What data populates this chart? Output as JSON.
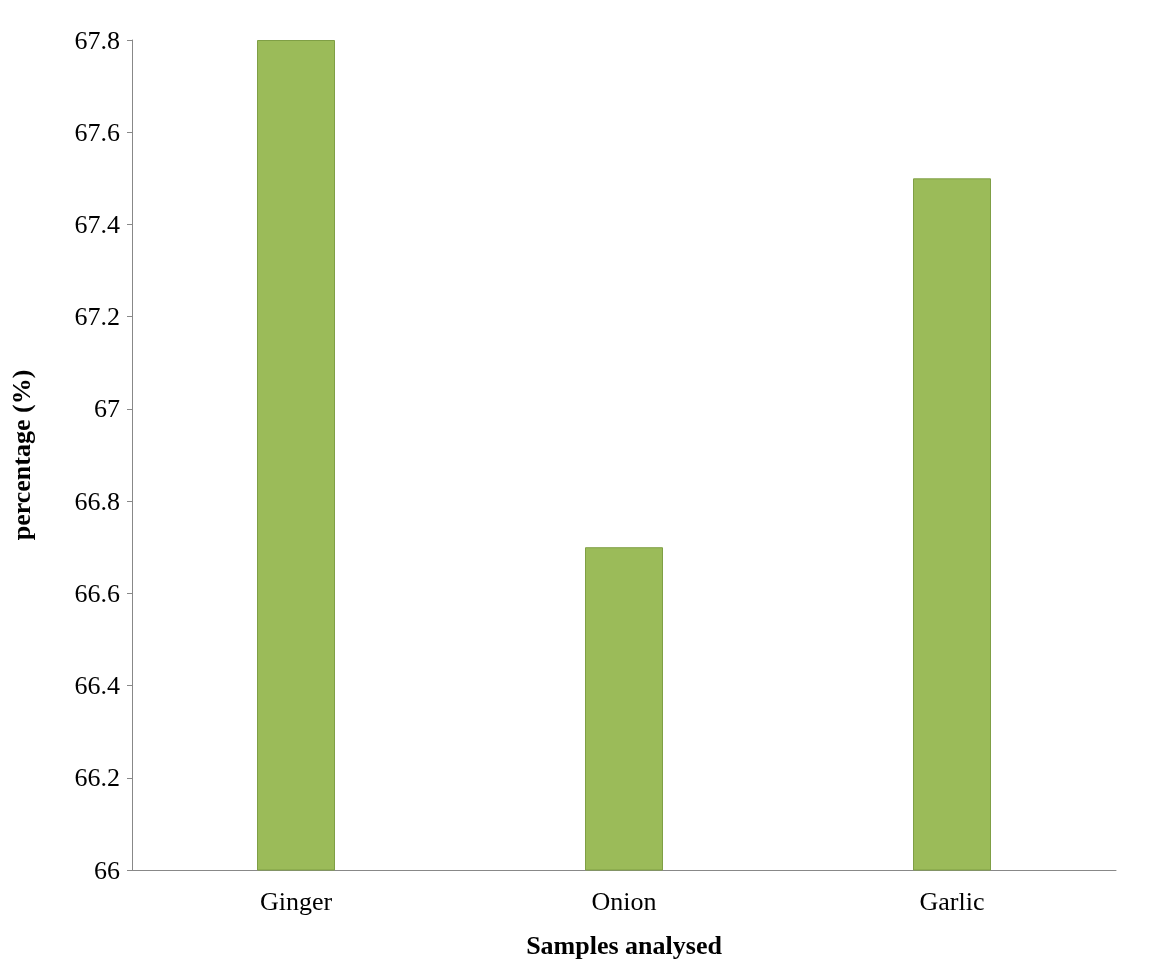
{
  "chart_data": {
    "type": "bar",
    "xlabel": "Samples analysed",
    "ylabel": "percentage (%)",
    "categories": [
      "Ginger",
      "Onion",
      "Garlic"
    ],
    "values": [
      67.8,
      66.7,
      67.5
    ],
    "color": "#9bbb59",
    "ylim": [
      66,
      67.8
    ],
    "yticks": [
      66,
      66.2,
      66.4,
      66.6,
      66.8,
      67,
      67.2,
      67.4,
      67.6,
      67.8
    ],
    "grid": false
  }
}
